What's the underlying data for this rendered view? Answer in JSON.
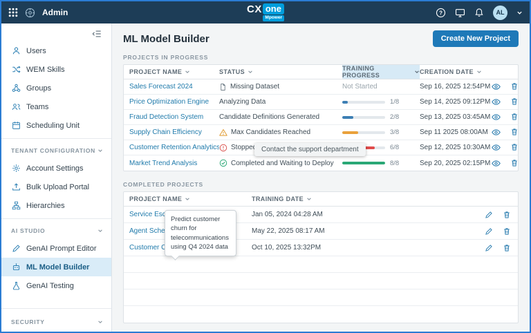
{
  "topbar": {
    "app_name": "Admin",
    "logo_cx": "CX",
    "logo_one": "one",
    "logo_mpower": "Mpower",
    "help_label": "?",
    "avatar_initials": "AL"
  },
  "sidebar": {
    "items_top": [
      {
        "label": "Users"
      },
      {
        "label": "WEM Skills"
      },
      {
        "label": "Groups"
      },
      {
        "label": "Teams"
      },
      {
        "label": "Scheduling Unit"
      }
    ],
    "section_tenant": {
      "label": "TENANT CONFIGURATION",
      "items": [
        {
          "label": "Account Settings"
        },
        {
          "label": "Bulk Upload Portal"
        },
        {
          "label": "Hierarchies"
        }
      ]
    },
    "section_ai": {
      "label": "AI STUDIO",
      "items": [
        {
          "label": "GenAI Prompt Editor"
        },
        {
          "label": "ML Model Builder"
        },
        {
          "label": "GenAI Testing"
        }
      ]
    },
    "section_security": {
      "label": "SECURITY"
    }
  },
  "main": {
    "title": "ML Model Builder",
    "create_button_label": "Create New Project",
    "in_progress": {
      "section_label": "PROJECTS IN PROGRESS",
      "columns": {
        "name": "PROJECT NAME",
        "status": "STATUS",
        "progress": "TRAINING PROGRESS",
        "date": "CREATION DATE"
      },
      "rows": [
        {
          "name": "Sales Forecast 2024",
          "status": "Missing Dataset",
          "progress_label": "Not Started",
          "date": "Sep 16, 2025 12:54PM"
        },
        {
          "name": "Price Optimization Engine",
          "status": "Analyzing Data",
          "progress_done": 1,
          "progress_total": 8,
          "progress_label": "1/8",
          "progress_color": "#3d7fb4",
          "date": "Sep 14, 2025 09:12PM"
        },
        {
          "name": "Fraud Detection System",
          "status": "Candidate Definitions Generated",
          "progress_done": 2,
          "progress_total": 8,
          "progress_label": "2/8",
          "progress_color": "#3d7fb4",
          "date": "Sep 13, 2025 03:45AM"
        },
        {
          "name": "Supply Chain Efficiency",
          "status": "Max Candidates Reached",
          "progress_done": 3,
          "progress_total": 8,
          "progress_label": "3/8",
          "progress_color": "#e9a13b",
          "date": "Sep 11 2025 08:00AM"
        },
        {
          "name": "Customer Retention Analytics",
          "status": "Stopped",
          "progress_done": 6,
          "progress_total": 8,
          "progress_label": "6/8",
          "progress_color": "#e04b4b",
          "date": "Sep 12, 2025 10:30AM"
        },
        {
          "name": "Market Trend Analysis",
          "status": "Completed and Waiting to Deploy",
          "progress_done": 8,
          "progress_total": 8,
          "progress_label": "8/8",
          "progress_color": "#2aa876",
          "date": "Sep 20, 2025 02:15PM"
        }
      ]
    },
    "completed": {
      "section_label": "COMPLETED PROJECTS",
      "columns": {
        "name": "PROJECT NAME",
        "date": "TRAINING DATE"
      },
      "rows": [
        {
          "name": "Service Escalat",
          "date": "Jan 05, 2024 04:28 AM"
        },
        {
          "name": "Agent Schedul",
          "date": "May 22, 2025 08:17 AM"
        },
        {
          "name": "Customer Churn Analysis Q4",
          "date": "Oct 10, 2025 13:32PM"
        }
      ]
    },
    "tooltips": {
      "support": "Contact the support department",
      "churn": "Predict customer churn for telecommunications using Q4 2024 data"
    }
  }
}
